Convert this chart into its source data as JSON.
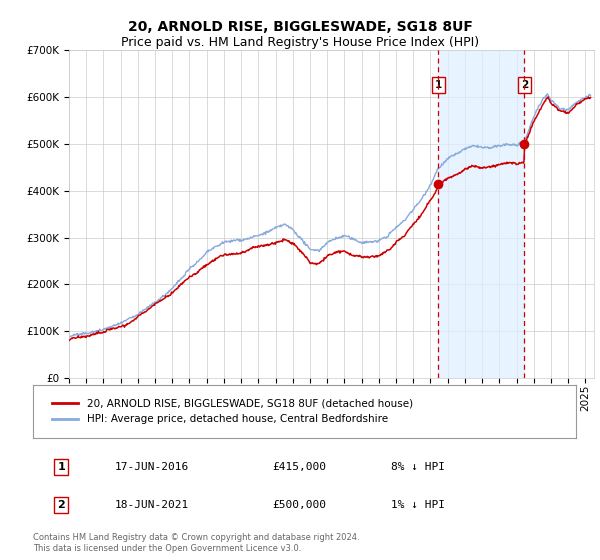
{
  "title": "20, ARNOLD RISE, BIGGLESWADE, SG18 8UF",
  "subtitle": "Price paid vs. HM Land Registry's House Price Index (HPI)",
  "ylim": [
    0,
    700000
  ],
  "yticks": [
    0,
    100000,
    200000,
    300000,
    400000,
    500000,
    600000,
    700000
  ],
  "ytick_labels": [
    "£0",
    "£100K",
    "£200K",
    "£300K",
    "£400K",
    "£500K",
    "£600K",
    "£700K"
  ],
  "xlim_start": 1995.0,
  "xlim_end": 2025.5,
  "bg_color": "#ffffff",
  "grid_color": "#cccccc",
  "hpi_color": "#88aadd",
  "price_color": "#cc0000",
  "marker_color": "#cc0000",
  "vline_color": "#cc0000",
  "shade_color": "#ddeeff",
  "legend_label_price": "20, ARNOLD RISE, BIGGLESWADE, SG18 8UF (detached house)",
  "legend_label_hpi": "HPI: Average price, detached house, Central Bedfordshire",
  "transaction1_date": "17-JUN-2016",
  "transaction1_price": 415000,
  "transaction1_pct": "8% ↓ HPI",
  "transaction2_date": "18-JUN-2021",
  "transaction2_price": 500000,
  "transaction2_pct": "1% ↓ HPI",
  "footer": "Contains HM Land Registry data © Crown copyright and database right 2024.\nThis data is licensed under the Open Government Licence v3.0.",
  "sale1_year": 2016.46,
  "sale2_year": 2021.46,
  "sale1_price": 415000,
  "sale2_price": 500000,
  "title_fontsize": 10,
  "subtitle_fontsize": 9,
  "tick_fontsize": 7.5
}
